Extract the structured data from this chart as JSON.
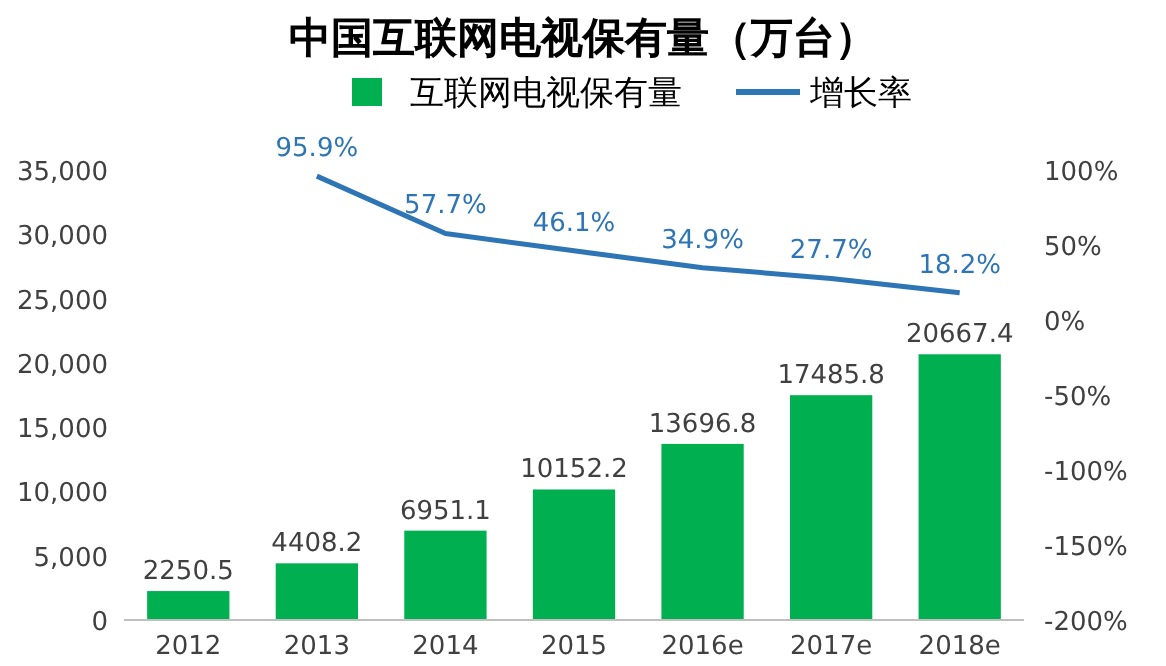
{
  "chart_data": {
    "type": "bar",
    "title": "中国互联网电视保有量（万台）",
    "categories": [
      "2012",
      "2013",
      "2014",
      "2015",
      "2016e",
      "2017e",
      "2018e"
    ],
    "series": [
      {
        "name": "互联网电视保有量",
        "color": "#00b050",
        "values": [
          2250.5,
          4408.2,
          6951.1,
          10152.2,
          13696.8,
          17485.8,
          20667.4
        ],
        "value_labels": [
          "2250.5",
          "4408.2",
          "6951.1",
          "10152.2",
          "13696.8",
          "17485.8",
          "20667.4"
        ]
      },
      {
        "name": "增长率",
        "type": "line",
        "axis": "y2",
        "color": "#2e75b6",
        "values": [
          null,
          95.9,
          57.7,
          46.1,
          34.9,
          27.7,
          18.2
        ],
        "value_labels": [
          null,
          "95.9%",
          "57.7%",
          "46.1%",
          "34.9%",
          "27.7%",
          "18.2%"
        ]
      }
    ],
    "ylim": [
      0,
      35000
    ],
    "yticks": [
      {
        "value": 0,
        "label": "0"
      },
      {
        "value": 5000,
        "label": "5,000"
      },
      {
        "value": 10000,
        "label": "10,000"
      },
      {
        "value": 15000,
        "label": "15,000"
      },
      {
        "value": 20000,
        "label": "20,000"
      },
      {
        "value": 25000,
        "label": "25,000"
      },
      {
        "value": 30000,
        "label": "30,000"
      },
      {
        "value": 35000,
        "label": "35,000"
      }
    ],
    "y2lim": [
      -200,
      100
    ],
    "y2ticks": [
      {
        "value": -200,
        "label": "-200%"
      },
      {
        "value": -150,
        "label": "-150%"
      },
      {
        "value": -100,
        "label": "-100%"
      },
      {
        "value": -50,
        "label": "-50%"
      },
      {
        "value": 0,
        "label": "0%"
      },
      {
        "value": 50,
        "label": "50%"
      },
      {
        "value": 100,
        "label": "100%"
      }
    ],
    "legend": "top",
    "grid": false,
    "marker": "none",
    "line_style": "solid"
  }
}
